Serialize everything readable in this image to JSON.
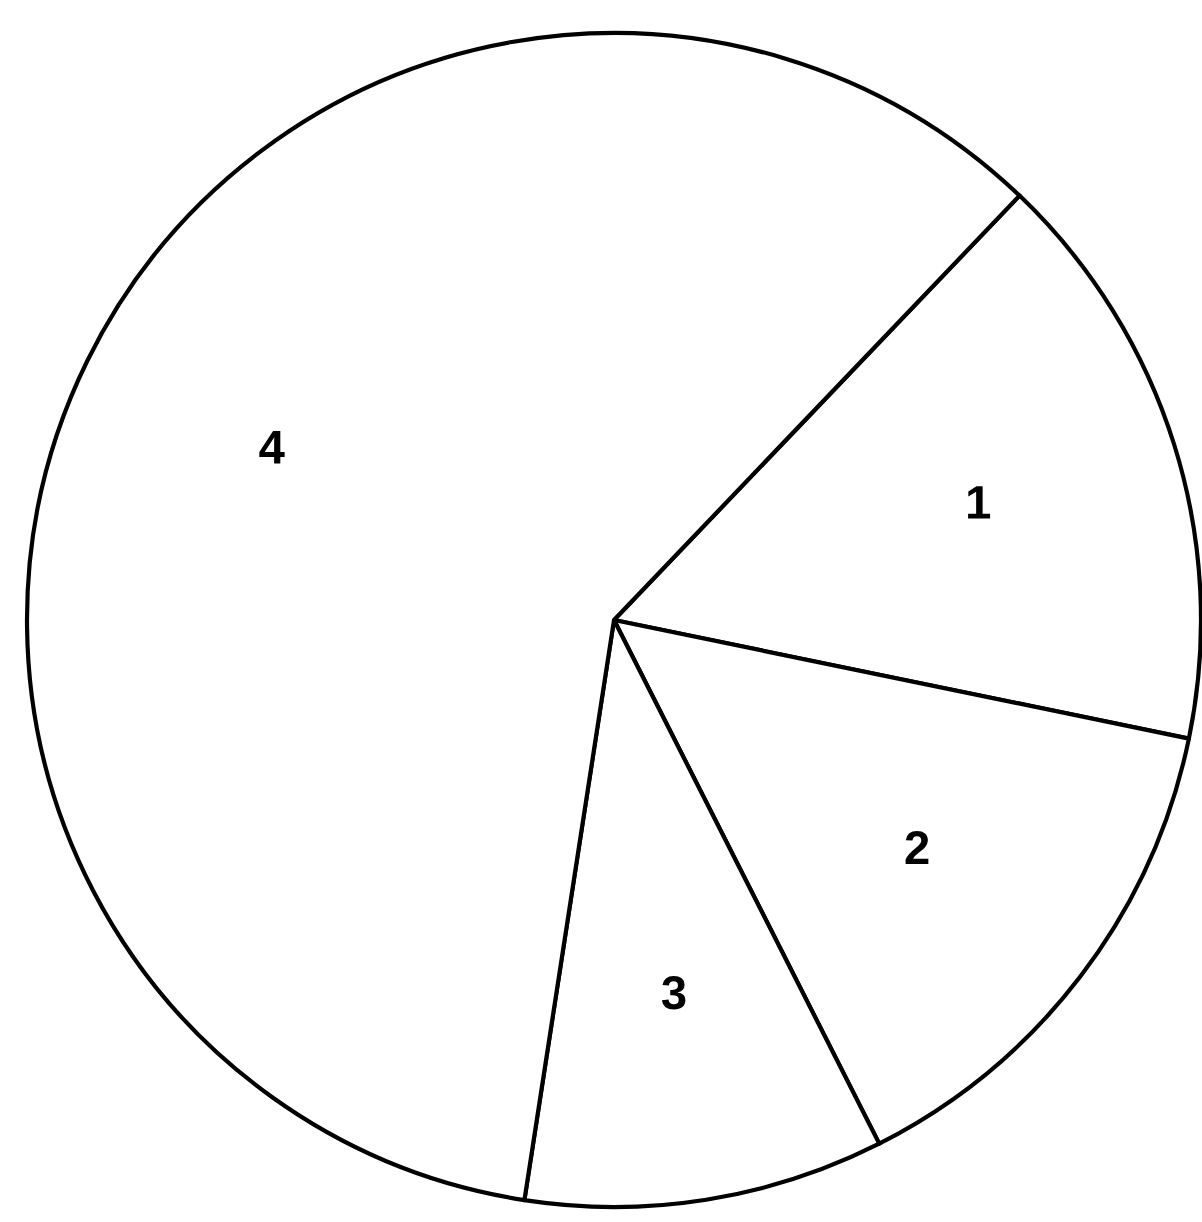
{
  "chart_data": {
    "type": "pie",
    "categories": [
      "1",
      "2",
      "3",
      "4"
    ],
    "values": [
      16.1,
      14.3,
      9.9,
      59.7
    ],
    "colors": [
      "#ffffff",
      "#ffffff",
      "#ffffff",
      "#ffffff"
    ],
    "legend": false
  }
}
